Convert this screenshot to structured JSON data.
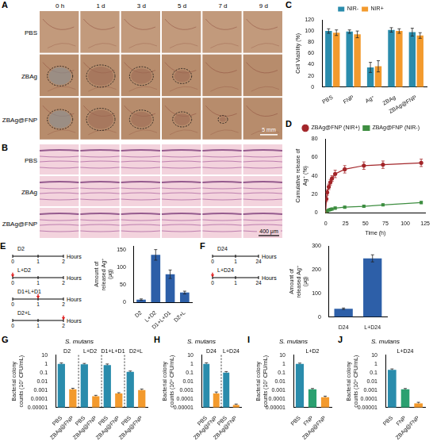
{
  "image_panels": [
    {
      "label": "A",
      "columns": [
        "0 h",
        "1 d",
        "3 d",
        "5 d",
        "7 d",
        "9 d"
      ],
      "rows": [
        "PBS",
        "ZBAg",
        "ZBAg@FNP"
      ],
      "scale_bar": "5 mm"
    },
    {
      "label": "B",
      "rows": [
        "PBS",
        "ZBAg",
        "ZBAg@FNP"
      ],
      "scale_bar": "400 μm"
    }
  ],
  "schemes": [
    {
      "label": "E",
      "rows": [
        "D2",
        "L+D2",
        "D1+L+D1",
        "D2+L"
      ],
      "ticks": [
        0,
        1,
        2
      ],
      "laser_at": [
        null,
        0,
        1,
        2
      ],
      "unit": "Hours"
    },
    {
      "label": "F",
      "rows": [
        "D24",
        "L+D24"
      ],
      "ticks": [
        0,
        1,
        24
      ],
      "laser_at": [
        null,
        0
      ],
      "unit": "Hours"
    }
  ],
  "chart_data": [
    {
      "label": "C",
      "type": "bar",
      "categories": [
        "PBS",
        "FNP",
        "Ag⁺",
        "ZBAg",
        "ZBAg@FNP"
      ],
      "series": [
        {
          "name": "NIR-",
          "color": "#2a8cac",
          "values": [
            100,
            99,
            35,
            102,
            98
          ],
          "errors": [
            4,
            3,
            9,
            4,
            7
          ]
        },
        {
          "name": "NIR+",
          "color": "#f39a2d",
          "values": [
            97,
            94,
            37,
            100,
            92
          ],
          "errors": [
            5,
            6,
            10,
            4,
            5
          ]
        }
      ],
      "y_label": "Cell Viability (%)",
      "ylim": [
        0,
        120
      ],
      "yticks": [
        0,
        20,
        40,
        60,
        80,
        100,
        120
      ],
      "legend": "top",
      "grid": false
    },
    {
      "label": "D",
      "type": "line",
      "x": [
        0,
        1,
        2,
        4,
        6,
        8,
        12,
        24,
        48,
        72,
        120
      ],
      "series": [
        {
          "name": "ZBAg@FNP (NIR+)",
          "color": "#a3262a",
          "marker": "circle",
          "values": [
            0,
            15,
            22,
            28,
            33,
            37,
            42,
            47,
            51,
            52,
            54
          ],
          "errors": [
            0,
            3,
            3,
            3,
            3,
            3,
            4,
            4,
            4,
            4,
            4
          ]
        },
        {
          "name": "ZBAg@FNP (NIR-)",
          "color": "#3e8e41",
          "marker": "square",
          "values": [
            0,
            1,
            2,
            3,
            3.5,
            4,
            5,
            6,
            7,
            8.5,
            11
          ],
          "errors": [
            0,
            1,
            1,
            1,
            1,
            1,
            1,
            1,
            1,
            1,
            1
          ]
        }
      ],
      "x_label": "Time (h)",
      "y_label": "Cumulative release of Ag⁺ (%)",
      "xlim": [
        0,
        125
      ],
      "xticks": [
        0,
        25,
        50,
        75,
        100,
        125
      ],
      "ylim": [
        0,
        80
      ],
      "yticks": [
        0,
        20,
        40,
        60,
        80
      ],
      "legend": "top",
      "grid": false
    },
    {
      "type": "bar",
      "categories": [
        "D2",
        "L+D2",
        "D1+L+D1",
        "D2+L"
      ],
      "values": [
        8,
        135,
        80,
        28
      ],
      "errors": [
        2,
        15,
        12,
        4
      ],
      "color": "#2d5fa8",
      "y_label": "Amount of released Ag⁺ (μg)",
      "ylim": [
        0,
        160
      ],
      "yticks": [
        0,
        50,
        100,
        150
      ],
      "grid": false
    },
    {
      "type": "bar",
      "categories": [
        "D24",
        "L+D24"
      ],
      "values": [
        35,
        248
      ],
      "errors": [
        3,
        15
      ],
      "color": "#2d5fa8",
      "y_label": "Amount of released Ag⁺ (μg)",
      "ylim": [
        0,
        300
      ],
      "yticks": [
        0,
        100,
        200,
        300
      ],
      "grid": false
    },
    {
      "label": "G",
      "type": "bar",
      "title": "S. mutans",
      "log": "y",
      "categories": [
        "PBS",
        "ZBAg@FNP",
        "PBS",
        "ZBAg@FNP",
        "PBS",
        "ZBAg@FNP",
        "PBS",
        "ZBAg@FNP"
      ],
      "groups": [
        "D2",
        "L+D2",
        "D1+L+D1",
        "D2+L"
      ],
      "values": [
        1,
        0.0012,
        0.9,
        0.0002,
        0.7,
        0.0004,
        0.12,
        0.001
      ],
      "errors": [
        0.25,
        0.0004,
        0.2,
        5e-05,
        0.25,
        0.0001,
        0.03,
        0.0003
      ],
      "colors": [
        "#2a8cac",
        "#f39a2d",
        "#2a8cac",
        "#f39a2d",
        "#2a8cac",
        "#f39a2d",
        "#2a8cac",
        "#f39a2d"
      ],
      "y_label": "Bacterial colony counts (10⁷ CFU/mL)",
      "ylim": [
        1e-05,
        10
      ],
      "yticks": [
        10,
        1,
        0.1,
        0.01,
        0.001,
        0.0001,
        1e-05
      ],
      "grid": false
    },
    {
      "label": "H",
      "type": "bar",
      "title": "S. mutans",
      "log": "y",
      "categories": [
        "PBS",
        "ZBAg@FNP",
        "PBS",
        "ZBAg@FNP"
      ],
      "groups": [
        "D24",
        "L+D24"
      ],
      "values": [
        1,
        0.0004,
        0.1,
        2e-05
      ],
      "errors": [
        0.3,
        0.0002,
        0.03,
        5e-06
      ],
      "colors": [
        "#2a8cac",
        "#f39a2d",
        "#2a8cac",
        "#f39a2d"
      ],
      "y_label": "Bacterial colony counts (10⁹ CFU/mL)",
      "ylim": [
        1e-05,
        10
      ],
      "yticks": [
        10,
        1,
        0.1,
        0.01,
        0.001,
        0.0001,
        1e-05
      ],
      "grid": false
    },
    {
      "label": "I",
      "type": "bar",
      "title": "S. mutans",
      "log": "y",
      "categories": [
        "PBS",
        "FNP",
        "ZBAg@FNP"
      ],
      "groups": [
        "L+D2"
      ],
      "values": [
        1,
        0.0012,
        0.00015
      ],
      "errors": [
        0.2,
        0.0003,
        5e-05
      ],
      "colors": [
        "#2a8cac",
        "#2aa070",
        "#f39a2d"
      ],
      "y_label": "Bacterial colony counts (10⁷ CFU/mL)",
      "ylim": [
        1e-05,
        10
      ],
      "yticks": [
        10,
        1,
        0.1,
        0.01,
        0.001,
        0.0001,
        1e-05
      ],
      "grid": false
    },
    {
      "label": "J",
      "type": "bar",
      "title": "S. mutans",
      "log": "y",
      "categories": [
        "PBS",
        "FNP",
        "ZBAg@FNP"
      ],
      "groups": [
        "L+D24"
      ],
      "values": [
        0.2,
        0.0012,
        3e-05
      ],
      "errors": [
        0.06,
        0.0003,
        1e-05
      ],
      "colors": [
        "#2a8cac",
        "#2aa070",
        "#f39a2d"
      ],
      "y_label": "Bacterial colony counts (10⁹ CFU/mL)",
      "ylim": [
        1e-05,
        10
      ],
      "yticks": [
        10,
        1,
        0.1,
        0.01,
        0.001,
        0.0001,
        1e-05
      ],
      "grid": false
    }
  ]
}
